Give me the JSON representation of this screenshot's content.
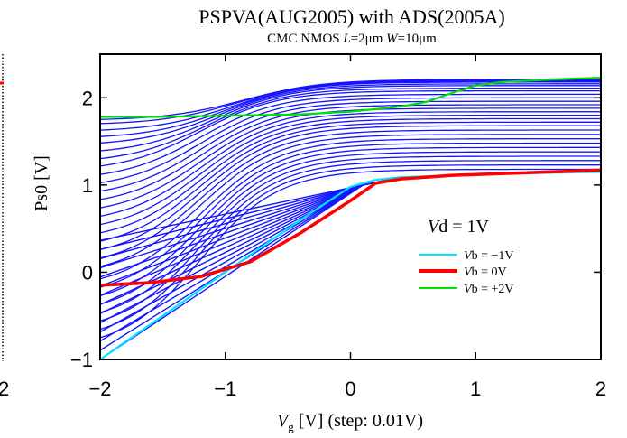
{
  "left_panel": {
    "x_tick_fragment": "2"
  },
  "chart_data": {
    "type": "line",
    "title": "PSPVA(AUG2005) with ADS(2005A)",
    "subtitle": {
      "prefix": "CMC NMOS ",
      "l_symbol": "L",
      "l_value": "=2μm ",
      "w_symbol": "W",
      "w_value": "=10μm"
    },
    "xlabel": {
      "symbol": "V",
      "subscript": "g",
      "rest": " [V] (step: 0.01V)"
    },
    "ylabel": "Ps0 [V]",
    "xlim": [
      -2,
      2
    ],
    "ylim": [
      -1,
      2.5
    ],
    "x_ticks": [
      -2,
      -1,
      0,
      1,
      2
    ],
    "x_tick_labels": [
      "−2",
      "−1",
      "0",
      "1",
      "2"
    ],
    "y_ticks": [
      -1,
      0,
      1,
      2
    ],
    "y_tick_labels": [
      "−1",
      "0",
      "1",
      "2"
    ],
    "grid": false,
    "legend_position": "right-center",
    "legend_title": {
      "symbol": "V",
      "rest": "d = 1V"
    },
    "x": [
      -2.0,
      -1.6,
      -1.2,
      -0.8,
      -0.4,
      0.0,
      0.2,
      0.4,
      0.6,
      0.8,
      1.0,
      1.2,
      1.6,
      2.0
    ],
    "highlighted_series": [
      {
        "label_symbol": "V",
        "label_rest": "b = −1V",
        "color": "#00e5ff",
        "values": [
          -1.0,
          -0.6,
          -0.2,
          0.2,
          0.6,
          0.98,
          1.06,
          1.09,
          1.1,
          1.11,
          1.12,
          1.13,
          1.14,
          1.15
        ]
      },
      {
        "label_symbol": "V",
        "label_rest": "b = 0V",
        "color": "#ff0000",
        "values": [
          -0.15,
          -0.12,
          -0.05,
          0.12,
          0.45,
          0.82,
          1.02,
          1.07,
          1.09,
          1.11,
          1.12,
          1.13,
          1.15,
          1.17
        ]
      },
      {
        "label_symbol": "V",
        "label_rest": "b = +2V",
        "color": "#00e000",
        "values": [
          1.78,
          1.78,
          1.79,
          1.8,
          1.81,
          1.84,
          1.87,
          1.9,
          1.95,
          2.05,
          2.14,
          2.18,
          2.21,
          2.23
        ]
      }
    ],
    "family": {
      "color": "#1414ff",
      "count": 28,
      "note_values": "blue curves between Vb = -1V and Vb = +2V, offset levels (V) at Vg = -2V",
      "levels_at_xmin": [
        -0.9,
        -0.8,
        -0.7,
        -0.6,
        -0.5,
        -0.4,
        -0.3,
        -0.2,
        -0.05,
        0.05,
        0.15,
        0.25,
        0.35,
        0.45,
        0.55,
        0.65,
        0.75,
        0.85,
        0.95,
        1.05,
        1.15,
        1.25,
        1.35,
        1.45,
        1.53,
        1.61,
        1.69,
        1.74
      ],
      "levels_at_xmax": [
        1.18,
        1.23,
        1.28,
        1.33,
        1.38,
        1.43,
        1.48,
        1.53,
        1.58,
        1.63,
        1.68,
        1.72,
        1.76,
        1.8,
        1.84,
        1.88,
        1.92,
        1.96,
        2.0,
        2.04,
        2.08,
        2.11,
        2.14,
        2.16,
        2.18,
        2.19,
        2.2,
        2.21
      ]
    }
  }
}
